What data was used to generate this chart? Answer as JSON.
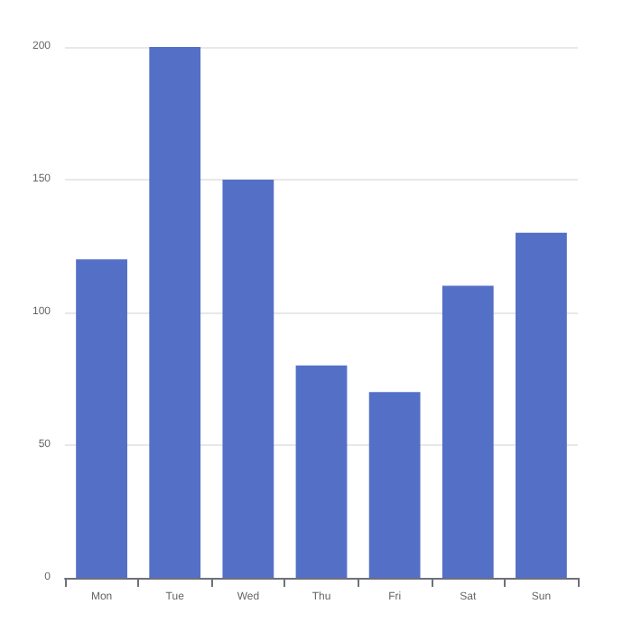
{
  "chart_data": {
    "type": "bar",
    "categories": [
      "Mon",
      "Tue",
      "Wed",
      "Thu",
      "Fri",
      "Sat",
      "Sun"
    ],
    "values": [
      120,
      200,
      150,
      80,
      70,
      110,
      130
    ],
    "color": "#5470c6",
    "ylim": [
      0,
      200
    ],
    "yticks": [
      0,
      50,
      100,
      150,
      200
    ],
    "grid": true
  }
}
